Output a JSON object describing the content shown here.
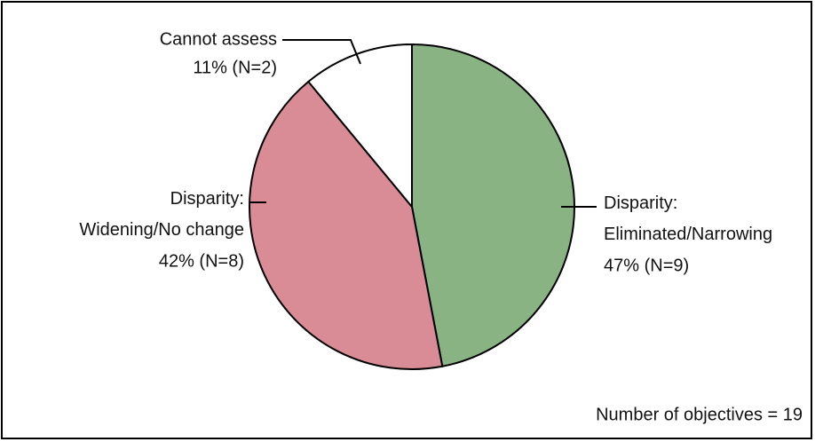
{
  "chart_data": {
    "type": "pie",
    "categories": [
      "Disparity:\nEliminated/Narrowing",
      "Disparity:\nWidening/No change",
      "Cannot assess"
    ],
    "values": [
      47,
      42,
      11
    ],
    "value_labels": [
      "47% (N=9)",
      "42% (N=8)",
      "11% (N=2)"
    ],
    "colors": [
      "#8ab383",
      "#d98b96",
      "#ffffff"
    ],
    "annotation": "Number of objectives = 19"
  }
}
